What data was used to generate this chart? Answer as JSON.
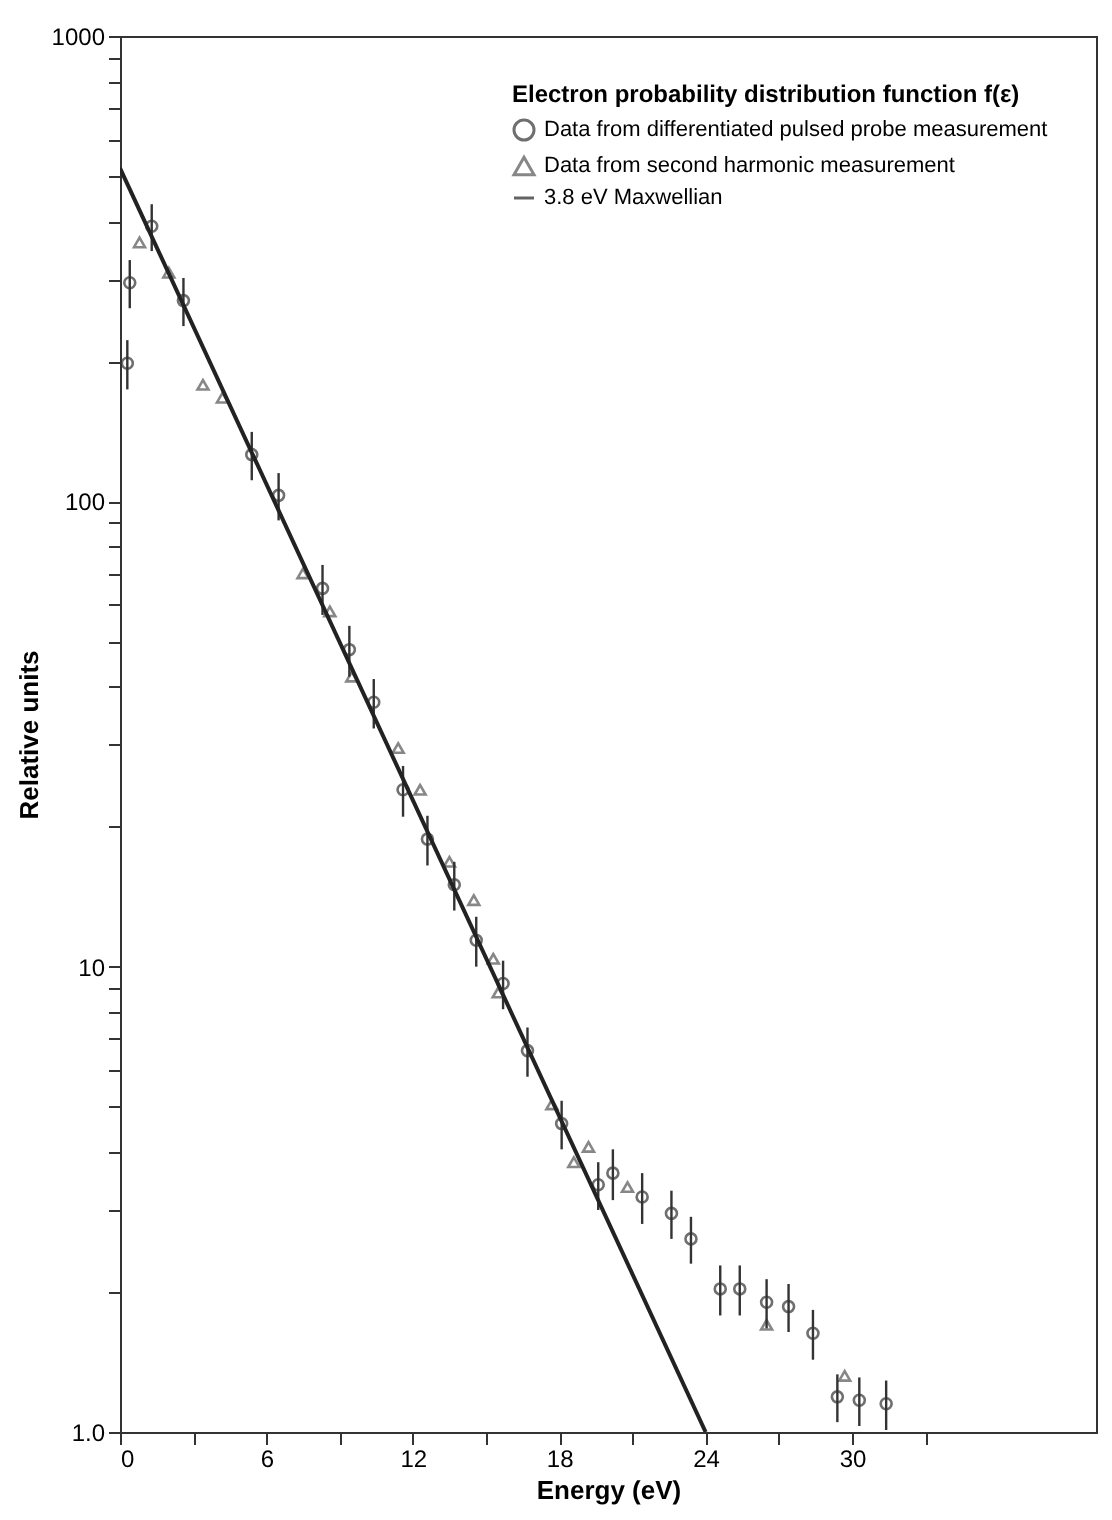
{
  "chart_data": {
    "type": "scatter",
    "legend_title": "Electron probability distribution function f(ε)",
    "xlabel": "Energy (eV)",
    "ylabel": "Relative units",
    "log": "y",
    "grid": false,
    "legend": "top right",
    "xlim": [
      0,
      40
    ],
    "xticks": [
      0,
      {
        "value": 3,
        "label": null
      },
      6,
      {
        "value": 9,
        "label": null
      },
      12,
      {
        "value": 15,
        "label": null
      },
      18,
      {
        "value": 21,
        "label": null
      },
      24,
      {
        "value": 27,
        "label": null
      },
      30,
      {
        "value": 33,
        "label": null
      }
    ],
    "ylim": [
      1,
      1000
    ],
    "yticks": [
      {
        "value": 1,
        "label": "1.0"
      },
      {
        "value": 2,
        "label": null
      },
      {
        "value": 3,
        "label": null
      },
      {
        "value": 4,
        "label": null
      },
      {
        "value": 5,
        "label": null
      },
      {
        "value": 6,
        "label": null
      },
      {
        "value": 7,
        "label": null
      },
      {
        "value": 8,
        "label": null
      },
      {
        "value": 9,
        "label": null
      },
      10,
      {
        "value": 20,
        "label": null
      },
      {
        "value": 30,
        "label": null
      },
      {
        "value": 40,
        "label": null
      },
      {
        "value": 50,
        "label": null
      },
      {
        "value": 60,
        "label": null
      },
      {
        "value": 70,
        "label": null
      },
      {
        "value": 80,
        "label": null
      },
      {
        "value": 90,
        "label": null
      },
      100,
      {
        "value": 200,
        "label": null
      },
      {
        "value": 300,
        "label": null
      },
      {
        "value": 400,
        "label": null
      },
      {
        "value": 500,
        "label": null
      },
      {
        "value": 600,
        "label": null
      },
      {
        "value": 700,
        "label": null
      },
      {
        "value": 800,
        "label": null
      },
      {
        "value": 900,
        "label": null
      },
      1000
    ],
    "series": [
      {
        "name": "Data from differentiated pulsed probe measurement",
        "marker": "circle",
        "color": "#333333",
        "x": [
          0.3,
          0.4,
          1.3,
          2.6,
          5.4,
          6.5,
          8.3,
          9.4,
          10.4,
          11.6,
          12.6,
          13.7,
          14.6,
          15.7,
          16.7,
          18.1,
          19.6,
          20.2,
          21.4,
          22.6,
          23.4,
          24.6,
          25.4,
          26.5,
          27.4,
          28.4,
          29.4,
          30.3,
          31.4
        ],
        "values": [
          198,
          295,
          390,
          270,
          126,
          103,
          65,
          48,
          37,
          24,
          18.8,
          15,
          11.4,
          9.2,
          6.6,
          4.6,
          3.4,
          3.6,
          3.2,
          2.95,
          2.6,
          2.03,
          2.03,
          1.9,
          1.86,
          1.63,
          1.19,
          1.17,
          1.15
        ],
        "errors": [
          24,
          35,
          45,
          32,
          15,
          12,
          8,
          6,
          4.5,
          3,
          2.3,
          1.8,
          1.4,
          1.1,
          0.8,
          0.55,
          0.4,
          0.45,
          0.4,
          0.35,
          0.3,
          0.25,
          0.25,
          0.23,
          0.22,
          0.2,
          0.14,
          0.14,
          0.14
        ]
      },
      {
        "name": "Data from second harmonic measurement",
        "marker": "triangle",
        "color": "#555555",
        "x": [
          0.8,
          2.0,
          3.4,
          4.2,
          7.5,
          8.6,
          9.5,
          11.4,
          12.3,
          13.5,
          14.5,
          15.3,
          15.5,
          17.7,
          18.6,
          19.2,
          20.8,
          26.5,
          29.7
        ],
        "values": [
          360,
          310,
          178,
          167,
          70,
          58,
          42,
          29.5,
          24,
          16.8,
          13.9,
          10.4,
          8.8,
          5.06,
          3.8,
          4.1,
          3.36,
          1.7,
          1.32
        ]
      },
      {
        "name": "3.8 eV Maxwellian",
        "type": "line",
        "line_style": "solid",
        "color": "#222222",
        "x": [
          0,
          24
        ],
        "values": [
          520,
          1
        ]
      }
    ]
  }
}
